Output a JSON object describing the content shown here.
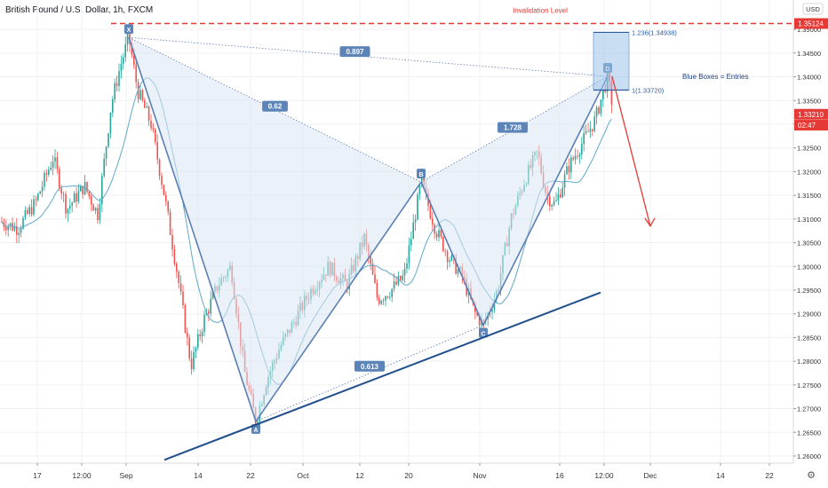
{
  "header": {
    "title": "British Pound / U.S. Dollar, 1h, FXCM"
  },
  "currency_badge": "USD",
  "chart_data": {
    "type": "line",
    "title": "British Pound / U.S. Dollar, 1h, FXCM",
    "ylim": [
      1.2585,
      1.3562
    ],
    "y_ticks": [
      1.26,
      1.265,
      1.27,
      1.275,
      1.28,
      1.285,
      1.29,
      1.295,
      1.3,
      1.305,
      1.31,
      1.315,
      1.32,
      1.325,
      1.33,
      1.335,
      1.34,
      1.345,
      1.35
    ],
    "y_tick_labels": [
      "1.26000",
      "1.26500",
      "1.27000",
      "1.27500",
      "1.28000",
      "1.28500",
      "1.29000",
      "1.29500",
      "1.30000",
      "1.30500",
      "1.31000",
      "1.31500",
      "1.32000",
      "1.32500",
      "1.33000",
      "1.33500",
      "1.34000",
      "1.34500",
      "1.35000"
    ],
    "x_tick_labels": [
      "17",
      "12:00",
      "Sep",
      "14",
      "22",
      "Oct",
      "12",
      "20",
      "Nov",
      "16",
      "12:00",
      "Dec",
      "14",
      "22"
    ],
    "price_markers": [
      {
        "label": "1.35124",
        "value": 1.35124,
        "color": "#e53935"
      },
      {
        "label": "1.33210",
        "value": 1.3321,
        "color": "#e53935"
      },
      {
        "label": "02:47",
        "value": 1.3298,
        "color": "#e53935"
      }
    ],
    "pattern_points": [
      {
        "label": "X",
        "value": 1.3483
      },
      {
        "label": "A",
        "value": 1.2673
      },
      {
        "label": "B",
        "value": 1.3178
      },
      {
        "label": "C",
        "value": 1.2876
      },
      {
        "label": "D",
        "value": 1.3401
      }
    ],
    "ratio_labels": [
      "0.897",
      "0.62",
      "1.728",
      "0.613"
    ],
    "annotations": {
      "invalidation": "Invalidation Level",
      "level_1236": "1.236(1.34938)",
      "level_1": "1(1.33720)",
      "blue_boxes": "Blue Boxes = Entries"
    },
    "colors": {
      "pattern_fill": "#dbe6f3",
      "pattern_line": "#5b7fb3",
      "trend_line": "#1f4e8c",
      "ma_line": "#5fa8c9",
      "bull": "#26a69a",
      "bear": "#ef5350",
      "invalidation": "#e53935",
      "entry_box": "#9cc3e9"
    }
  }
}
